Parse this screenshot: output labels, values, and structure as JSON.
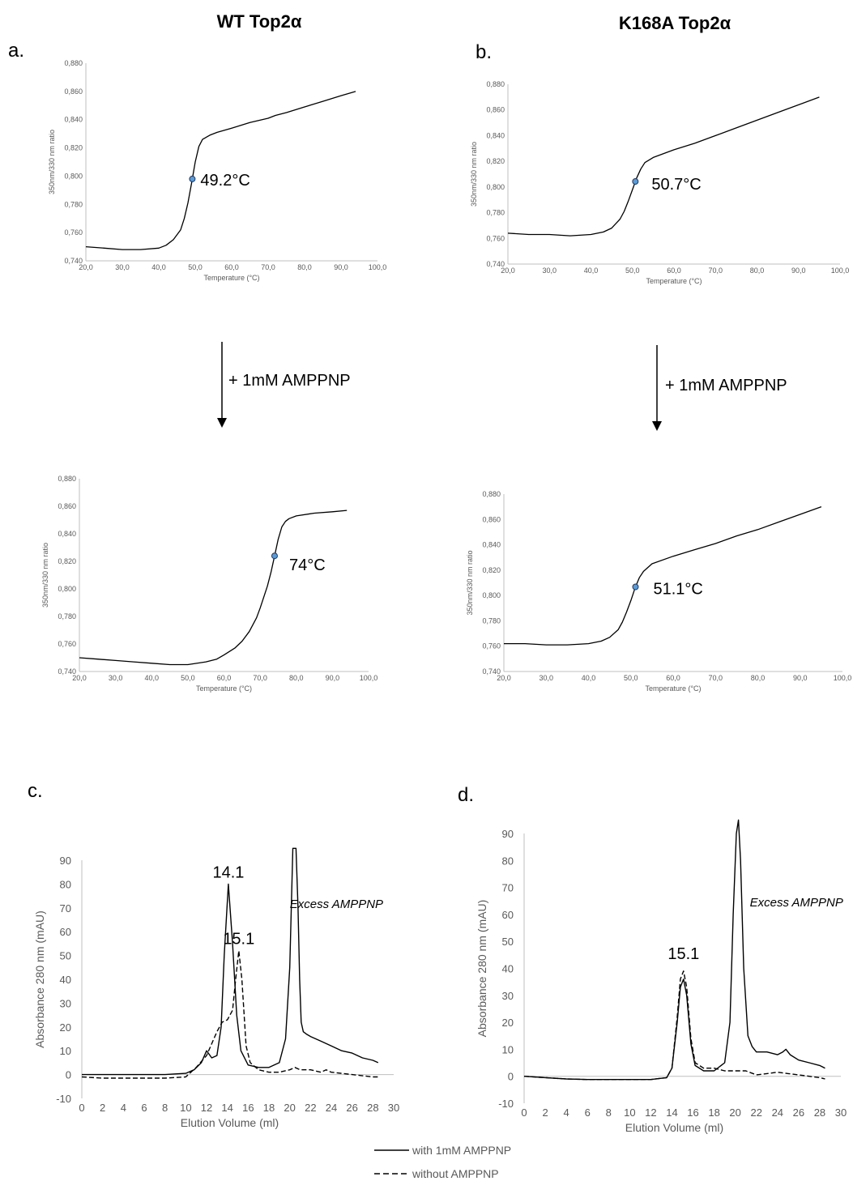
{
  "figure": {
    "col_titles": [
      "WT Top2α",
      "K168A Top2α"
    ],
    "arrow_labels": [
      "+ 1mM AMPPNP",
      "+ 1mM AMPPNP"
    ],
    "legend": {
      "with": "with 1mM AMPPNP",
      "without": "without AMPPNP"
    }
  },
  "chart_data": [
    {
      "id": "a1",
      "panel_letter": "a.",
      "type": "line",
      "xlabel": "Temperature (°C)",
      "ylabel": "350nm/330 nm ratio",
      "xlim": [
        20,
        100
      ],
      "ylim": [
        0.74,
        0.88
      ],
      "x_ticks": [
        "20,0",
        "30,0",
        "40,0",
        "50,0",
        "60,0",
        "70,0",
        "80,0",
        "90,0",
        "100,0"
      ],
      "y_ticks": [
        "0,740",
        "0,760",
        "0,780",
        "0,800",
        "0,820",
        "0,840",
        "0,860",
        "0,880"
      ],
      "tm_value": 49.2,
      "tm_label": "49.2°C",
      "series": [
        {
          "x": [
            20,
            25,
            30,
            35,
            40,
            42,
            44,
            46,
            47,
            48,
            49,
            50,
            51,
            52,
            54,
            56,
            60,
            65,
            70,
            72,
            75,
            80,
            85,
            90,
            94
          ],
          "y": [
            0.75,
            0.749,
            0.748,
            0.748,
            0.749,
            0.751,
            0.755,
            0.762,
            0.77,
            0.781,
            0.795,
            0.81,
            0.821,
            0.826,
            0.829,
            0.831,
            0.834,
            0.838,
            0.841,
            0.843,
            0.845,
            0.849,
            0.853,
            0.857,
            0.86
          ]
        }
      ]
    },
    {
      "id": "b1",
      "panel_letter": "b.",
      "type": "line",
      "xlabel": "Temperature (°C)",
      "ylabel": "350nm/330 nm ratio",
      "xlim": [
        20,
        100
      ],
      "ylim": [
        0.74,
        0.88
      ],
      "x_ticks": [
        "20,0",
        "30,0",
        "40,0",
        "50,0",
        "60,0",
        "70,0",
        "80,0",
        "90,0",
        "100,0"
      ],
      "y_ticks": [
        "0,740",
        "0,760",
        "0,780",
        "0,800",
        "0,820",
        "0,840",
        "0,860",
        "0,880"
      ],
      "tm_value": 50.7,
      "tm_label": "50.7°C",
      "series": [
        {
          "x": [
            20,
            25,
            30,
            35,
            40,
            43,
            45,
            47,
            48,
            49,
            50,
            51,
            52,
            53,
            55,
            60,
            65,
            70,
            75,
            80,
            85,
            90,
            95
          ],
          "y": [
            0.764,
            0.763,
            0.763,
            0.762,
            0.763,
            0.765,
            0.768,
            0.775,
            0.781,
            0.789,
            0.798,
            0.807,
            0.814,
            0.819,
            0.823,
            0.829,
            0.834,
            0.84,
            0.846,
            0.852,
            0.858,
            0.864,
            0.87
          ]
        }
      ]
    },
    {
      "id": "a2",
      "panel_letter": "",
      "type": "line",
      "xlabel": "Temperature (°C)",
      "ylabel": "350nm/330 nm ratio",
      "xlim": [
        20,
        100
      ],
      "ylim": [
        0.74,
        0.88
      ],
      "x_ticks": [
        "20,0",
        "30,0",
        "40,0",
        "50,0",
        "60,0",
        "70,0",
        "80,0",
        "90,0",
        "100,0"
      ],
      "y_ticks": [
        "0,740",
        "0,760",
        "0,780",
        "0,800",
        "0,820",
        "0,840",
        "0,860",
        "0,880"
      ],
      "tm_value": 74,
      "tm_label": "74°C",
      "series": [
        {
          "x": [
            20,
            25,
            30,
            35,
            40,
            45,
            50,
            55,
            58,
            60,
            63,
            65,
            67,
            69,
            70,
            71,
            72,
            73,
            74,
            75,
            76,
            77,
            78,
            80,
            85,
            90,
            94
          ],
          "y": [
            0.75,
            0.749,
            0.748,
            0.747,
            0.746,
            0.745,
            0.745,
            0.747,
            0.749,
            0.752,
            0.757,
            0.762,
            0.769,
            0.779,
            0.786,
            0.794,
            0.802,
            0.812,
            0.824,
            0.836,
            0.845,
            0.849,
            0.851,
            0.853,
            0.855,
            0.856,
            0.857
          ]
        }
      ]
    },
    {
      "id": "b2",
      "panel_letter": "",
      "type": "line",
      "xlabel": "Temperature (°C)",
      "ylabel": "350nm/330 nm ratio",
      "xlim": [
        20,
        100
      ],
      "ylim": [
        0.74,
        0.88
      ],
      "x_ticks": [
        "20,0",
        "30,0",
        "40,0",
        "50,0",
        "60,0",
        "70,0",
        "80,0",
        "90,0",
        "100,0"
      ],
      "y_ticks": [
        "0,740",
        "0,760",
        "0,780",
        "0,800",
        "0,820",
        "0,840",
        "0,860",
        "0,880"
      ],
      "tm_value": 51.1,
      "tm_label": "51.1°C",
      "series": [
        {
          "x": [
            20,
            25,
            30,
            35,
            40,
            43,
            45,
            47,
            48,
            49,
            50,
            51,
            52,
            53,
            55,
            60,
            65,
            70,
            75,
            80,
            85,
            90,
            95
          ],
          "y": [
            0.762,
            0.762,
            0.761,
            0.761,
            0.762,
            0.764,
            0.767,
            0.773,
            0.779,
            0.787,
            0.796,
            0.806,
            0.814,
            0.819,
            0.825,
            0.831,
            0.836,
            0.841,
            0.847,
            0.852,
            0.858,
            0.864,
            0.87
          ]
        }
      ]
    },
    {
      "id": "c",
      "panel_letter": "c.",
      "type": "line",
      "xlabel": "Elution Volume (ml)",
      "ylabel": "Absorbance 280 nm (mAU)",
      "xlim": [
        0,
        30
      ],
      "ylim": [
        -10,
        90
      ],
      "x_ticks": [
        "0",
        "2",
        "4",
        "6",
        "8",
        "10",
        "12",
        "14",
        "16",
        "18",
        "20",
        "22",
        "24",
        "26",
        "28",
        "30"
      ],
      "y_ticks": [
        "-10",
        "0",
        "10",
        "20",
        "30",
        "40",
        "50",
        "60",
        "70",
        "80",
        "90"
      ],
      "annotations": [
        {
          "text": "14.1",
          "x": 14.1,
          "y": 80
        },
        {
          "text": "15.1",
          "x": 15.1,
          "y": 52
        },
        {
          "text": "Excess AMPPNP",
          "x": 24.5,
          "y": 70
        }
      ],
      "series": [
        {
          "name": "with 1mM AMPPNP",
          "style": "solid",
          "x": [
            0,
            2,
            4,
            6,
            8,
            10,
            10.8,
            11.5,
            12,
            12.5,
            13,
            13.4,
            13.7,
            14.1,
            14.5,
            14.9,
            15.3,
            16,
            17,
            18,
            19,
            19.6,
            20,
            20.3,
            20.6,
            20.8,
            20.95,
            21.1,
            21.3,
            21.6,
            22,
            23,
            24,
            25,
            26,
            27,
            28,
            28.5
          ],
          "y": [
            0,
            0,
            0,
            0,
            0,
            0.5,
            2,
            5,
            10,
            7,
            8,
            20,
            50,
            80,
            55,
            25,
            10,
            4,
            3,
            3,
            5,
            15,
            45,
            100,
            100,
            70,
            40,
            22,
            18,
            17,
            16,
            14,
            12,
            10,
            9,
            7,
            6,
            5
          ]
        },
        {
          "name": "without AMPPNP",
          "style": "dashed",
          "x": [
            0,
            2,
            4,
            6,
            8,
            10,
            11,
            12,
            13,
            13.5,
            14,
            14.5,
            14.8,
            15.1,
            15.4,
            15.8,
            16.2,
            17,
            18,
            19,
            20,
            20.5,
            21,
            22,
            23,
            23.5,
            24,
            26,
            28,
            28.5
          ],
          "y": [
            -1,
            -1.5,
            -1.5,
            -1.5,
            -1.5,
            -1,
            3,
            8,
            18,
            22,
            23,
            27,
            40,
            52,
            40,
            12,
            5,
            2,
            1,
            1,
            2,
            3,
            2,
            2,
            1,
            2,
            1,
            0,
            -1,
            -1
          ]
        }
      ]
    },
    {
      "id": "d",
      "panel_letter": "d.",
      "type": "line",
      "xlabel": "Elution Volume (ml)",
      "ylabel": "Absorbance 280 nm (mAU)",
      "xlim": [
        0,
        30
      ],
      "ylim": [
        -10,
        90
      ],
      "x_ticks": [
        "0",
        "2",
        "4",
        "6",
        "8",
        "10",
        "12",
        "14",
        "16",
        "18",
        "20",
        "22",
        "24",
        "26",
        "28",
        "30"
      ],
      "y_ticks": [
        "-10",
        "0",
        "10",
        "20",
        "30",
        "40",
        "50",
        "60",
        "70",
        "80",
        "90"
      ],
      "annotations": [
        {
          "text": "15.1",
          "x": 15.1,
          "y": 41
        },
        {
          "text": "Excess AMPPNP",
          "x": 25.8,
          "y": 63
        }
      ],
      "series": [
        {
          "name": "with 1mM AMPPNP",
          "style": "solid",
          "x": [
            0,
            2,
            4,
            6,
            8,
            10,
            12,
            13.5,
            14,
            14.5,
            14.8,
            15.1,
            15.4,
            15.8,
            16.2,
            17,
            18,
            19,
            19.5,
            19.8,
            20.1,
            20.3,
            20.5,
            20.8,
            21.2,
            21.6,
            22,
            23,
            24,
            24.5,
            24.8,
            25.2,
            26,
            27,
            28,
            28.5
          ],
          "y": [
            0,
            -0.5,
            -1,
            -1.2,
            -1.2,
            -1.2,
            -1.2,
            -0.5,
            3,
            20,
            33,
            36,
            30,
            12,
            4,
            2,
            2,
            5,
            20,
            60,
            90,
            96,
            80,
            40,
            15,
            11,
            9,
            9,
            8,
            9,
            10,
            8,
            6,
            5,
            4,
            3
          ]
        },
        {
          "name": "without AMPPNP",
          "style": "dashed",
          "x": [
            0,
            2,
            4,
            6,
            8,
            10,
            12,
            13.5,
            14,
            14.5,
            14.8,
            15.1,
            15.4,
            15.8,
            16.2,
            17,
            18,
            19,
            20,
            21,
            22,
            23,
            24,
            25,
            26,
            27,
            28,
            28.5
          ],
          "y": [
            0,
            -0.5,
            -1,
            -1.2,
            -1.2,
            -1.2,
            -1.2,
            -0.5,
            3,
            22,
            36,
            39,
            33,
            14,
            5,
            3,
            3,
            2,
            2,
            2,
            0.5,
            1,
            1.5,
            1,
            0.5,
            0,
            -0.5,
            -1
          ]
        }
      ]
    }
  ]
}
